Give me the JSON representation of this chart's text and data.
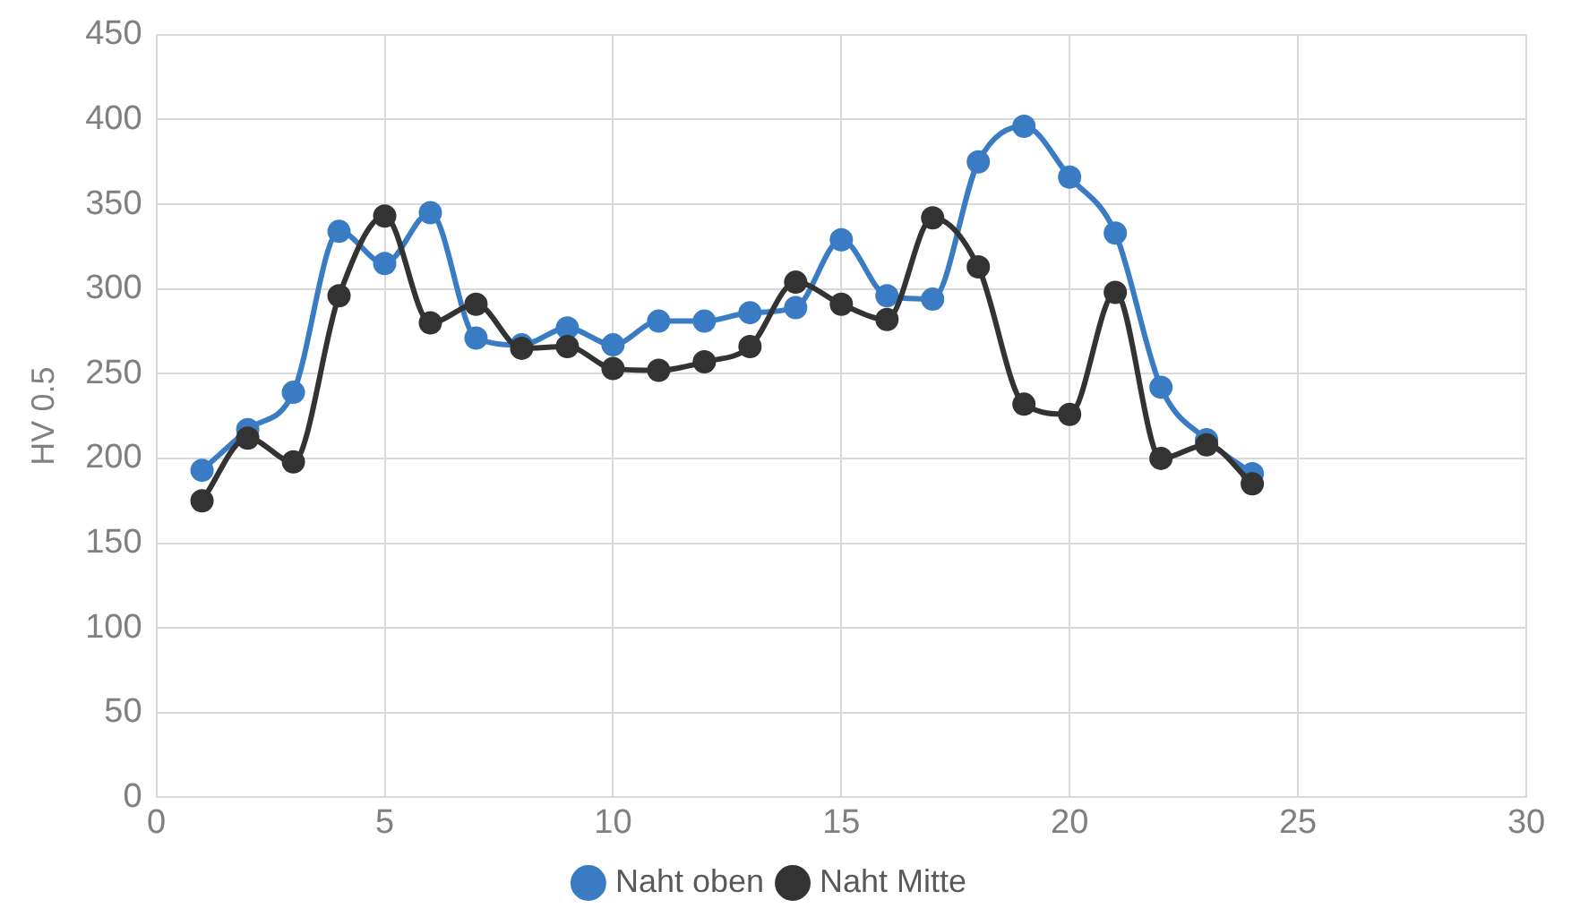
{
  "chart_data": {
    "type": "line",
    "ylabel": "HV 0.5",
    "x": [
      1,
      2,
      3,
      4,
      5,
      6,
      7,
      8,
      9,
      10,
      11,
      12,
      13,
      14,
      15,
      16,
      17,
      18,
      19,
      20,
      21,
      22,
      23,
      24
    ],
    "series": [
      {
        "name": "Naht oben",
        "color": "#3a7cc4",
        "values": [
          193,
          217,
          239,
          334,
          315,
          345,
          271,
          267,
          277,
          267,
          281,
          281,
          286,
          289,
          329,
          296,
          294,
          375,
          396,
          366,
          333,
          242,
          211,
          191
        ]
      },
      {
        "name": "Naht Mitte",
        "color": "#333333",
        "values": [
          175,
          212,
          198,
          296,
          343,
          280,
          291,
          265,
          266,
          253,
          252,
          257,
          266,
          304,
          291,
          282,
          342,
          313,
          232,
          226,
          298,
          200,
          208,
          185
        ]
      }
    ],
    "xlim": [
      0,
      30
    ],
    "xticks": [
      0,
      5,
      10,
      15,
      20,
      25,
      30
    ],
    "ylim": [
      0,
      450
    ],
    "yticks": [
      0,
      50,
      100,
      150,
      200,
      250,
      300,
      350,
      400,
      450
    ],
    "grid": true,
    "legend": "bottom",
    "marker": "circle",
    "line_style": "solid"
  }
}
